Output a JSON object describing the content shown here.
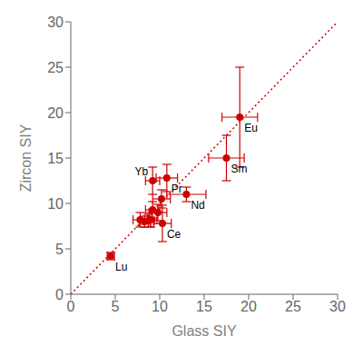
{
  "chart_data": {
    "type": "scatter",
    "xlabel": "Glass SIY",
    "ylabel": "Zircon SIY",
    "xlim": [
      0,
      30
    ],
    "ylim": [
      0,
      30
    ],
    "xticks": [
      0,
      5,
      10,
      15,
      20,
      25,
      30
    ],
    "yticks": [
      0,
      5,
      10,
      15,
      20,
      25,
      30
    ],
    "grid": false,
    "series": [
      {
        "type": "scatter",
        "color": "#cc0000",
        "marker": "circle",
        "x": [
          4.5,
          10.3,
          9.2,
          10.8,
          13.0,
          17.5,
          19.0,
          7.8,
          8.3,
          8.7,
          9.0,
          9.2,
          9.8,
          10.2
        ],
        "values": [
          4.2,
          7.8,
          12.5,
          12.8,
          11.0,
          15.0,
          19.5,
          8.2,
          8.0,
          8.1,
          8.2,
          9.3,
          9.0,
          10.5
        ],
        "xerr": [
          0.4,
          1.0,
          0.8,
          1.2,
          2.2,
          2.0,
          2.0,
          0.8,
          0.6,
          0.7,
          0.7,
          0.8,
          1.0,
          1.0
        ],
        "yerr": [
          0.4,
          2.0,
          1.5,
          1.5,
          0.8,
          2.5,
          5.5,
          0.8,
          0.6,
          0.7,
          0.8,
          0.9,
          0.9,
          1.0
        ],
        "labels": [
          "Lu",
          "Ce",
          "Yb",
          "Pr",
          "Nd",
          "Sm",
          "Eu",
          null,
          null,
          null,
          null,
          null,
          null,
          null
        ]
      },
      {
        "type": "line",
        "color": "#cc0000",
        "line_style": "dotted",
        "x": [
          0,
          30
        ],
        "values": [
          0,
          30
        ]
      }
    ]
  }
}
